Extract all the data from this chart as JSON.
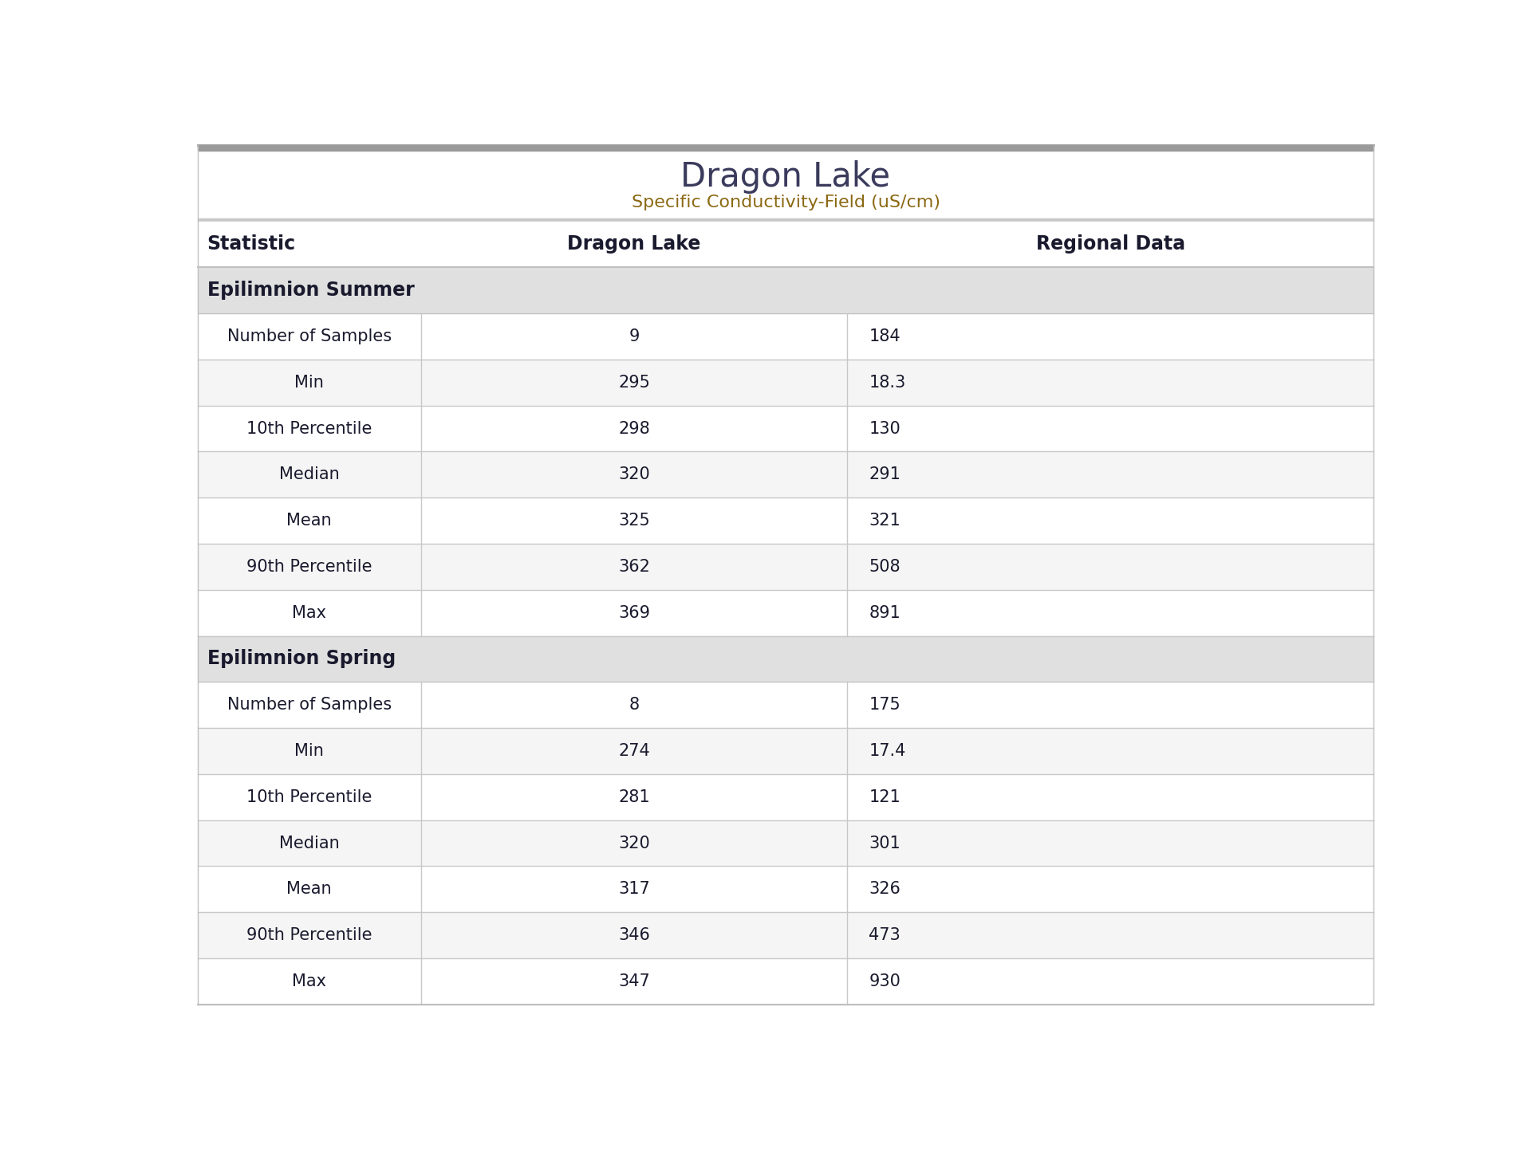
{
  "title": "Dragon Lake",
  "subtitle": "Specific Conductivity-Field (uS/cm)",
  "title_color": "#3a3a5c",
  "subtitle_color": "#8b6914",
  "col_headers": [
    "Statistic",
    "Dragon Lake",
    "Regional Data"
  ],
  "col_header_color": "#1a1a2e",
  "section_bg_color": "#e0e0e0",
  "section_text_color": "#1a1a2e",
  "row_bg_even": "#ffffff",
  "row_bg_odd": "#f5f5f5",
  "row_text_color": "#1a1a2e",
  "border_color": "#c8c8c8",
  "top_bar_color": "#9a9a9a",
  "sections": [
    {
      "name": "Epilimnion Summer",
      "rows": [
        [
          "Number of Samples",
          "9",
          "184"
        ],
        [
          "Min",
          "295",
          "18.3"
        ],
        [
          "10th Percentile",
          "298",
          "130"
        ],
        [
          "Median",
          "320",
          "291"
        ],
        [
          "Mean",
          "325",
          "321"
        ],
        [
          "90th Percentile",
          "362",
          "508"
        ],
        [
          "Max",
          "369",
          "891"
        ]
      ]
    },
    {
      "name": "Epilimnion Spring",
      "rows": [
        [
          "Number of Samples",
          "8",
          "175"
        ],
        [
          "Min",
          "274",
          "17.4"
        ],
        [
          "10th Percentile",
          "281",
          "121"
        ],
        [
          "Median",
          "320",
          "301"
        ],
        [
          "Mean",
          "317",
          "326"
        ],
        [
          "90th Percentile",
          "346",
          "473"
        ],
        [
          "Max",
          "347",
          "930"
        ]
      ]
    }
  ]
}
